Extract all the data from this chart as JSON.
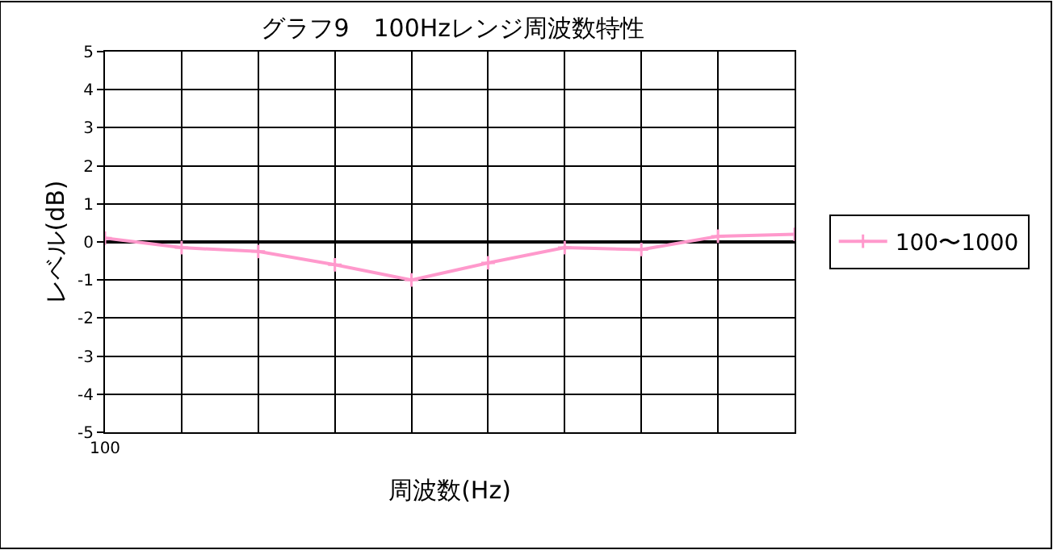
{
  "chart_data": {
    "type": "line",
    "title": "グラフ9　100Hzレンジ周波数特性",
    "xlabel": "周波数(Hz)",
    "ylabel": "レベル(dB)",
    "categories": [
      "100",
      null,
      null,
      null,
      null,
      null,
      null,
      null,
      null,
      null
    ],
    "series": [
      {
        "name": "100〜1000",
        "color": "#ff99cc",
        "values": [
          0.1,
          -0.15,
          -0.25,
          -0.6,
          -1.0,
          -0.55,
          -0.15,
          -0.2,
          0.15,
          0.2
        ]
      }
    ],
    "ylim": [
      -5,
      5
    ],
    "yticks": [
      -5,
      -4,
      -3,
      -2,
      -1,
      0,
      1,
      2,
      3,
      4,
      5
    ],
    "ref_lines": [
      {
        "axis": "y",
        "value": 0,
        "color": "#000000"
      }
    ],
    "grid": true,
    "legend": "right",
    "marker": "cross",
    "line_style": "solid"
  }
}
